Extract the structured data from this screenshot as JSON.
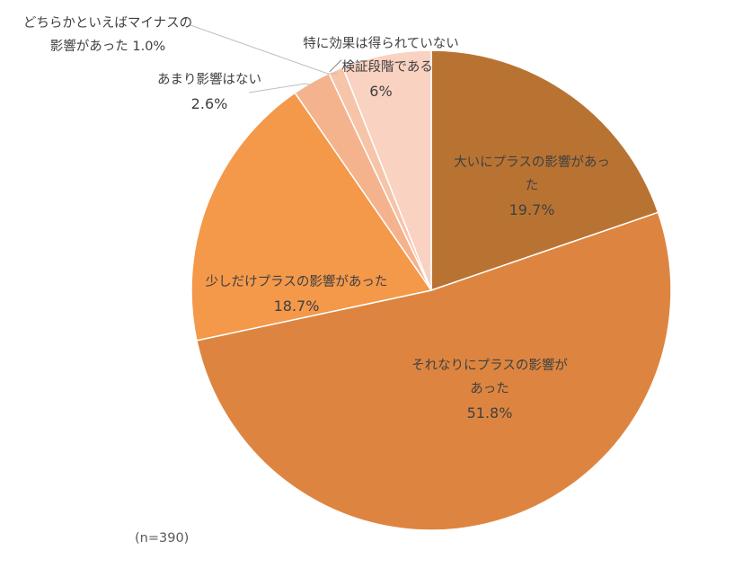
{
  "chart_data": {
    "type": "pie",
    "title": "",
    "slices": [
      {
        "label_lines": [
          "大いにプラスの影響があっ",
          "た"
        ],
        "value_label": "19.7%",
        "value": 19.7,
        "color": "#B87333"
      },
      {
        "label_lines": [
          "それなりにプラスの影響が",
          "あった"
        ],
        "value_label": "51.8%",
        "value": 51.8,
        "color": "#DD8540"
      },
      {
        "label_lines": [
          "少しだけプラスの影響があった"
        ],
        "value_label": "18.7%",
        "value": 18.7,
        "color": "#F4984A"
      },
      {
        "label_lines": [
          "あまり影響はない"
        ],
        "value_label": "2.6%",
        "value": 2.6,
        "color": "#F5B38D"
      },
      {
        "label_lines": [
          "どちらかといえばマイナスの",
          "影響があった 1.0%"
        ],
        "value_label": "",
        "value": 1.0,
        "color": "#F6C4A9"
      },
      {
        "label_lines": [
          "特に効果は得られていない",
          "／検証段階である"
        ],
        "value_label": "6%",
        "value": 6.0,
        "color": "#F9D2C2"
      }
    ],
    "note": "(n=390)"
  }
}
